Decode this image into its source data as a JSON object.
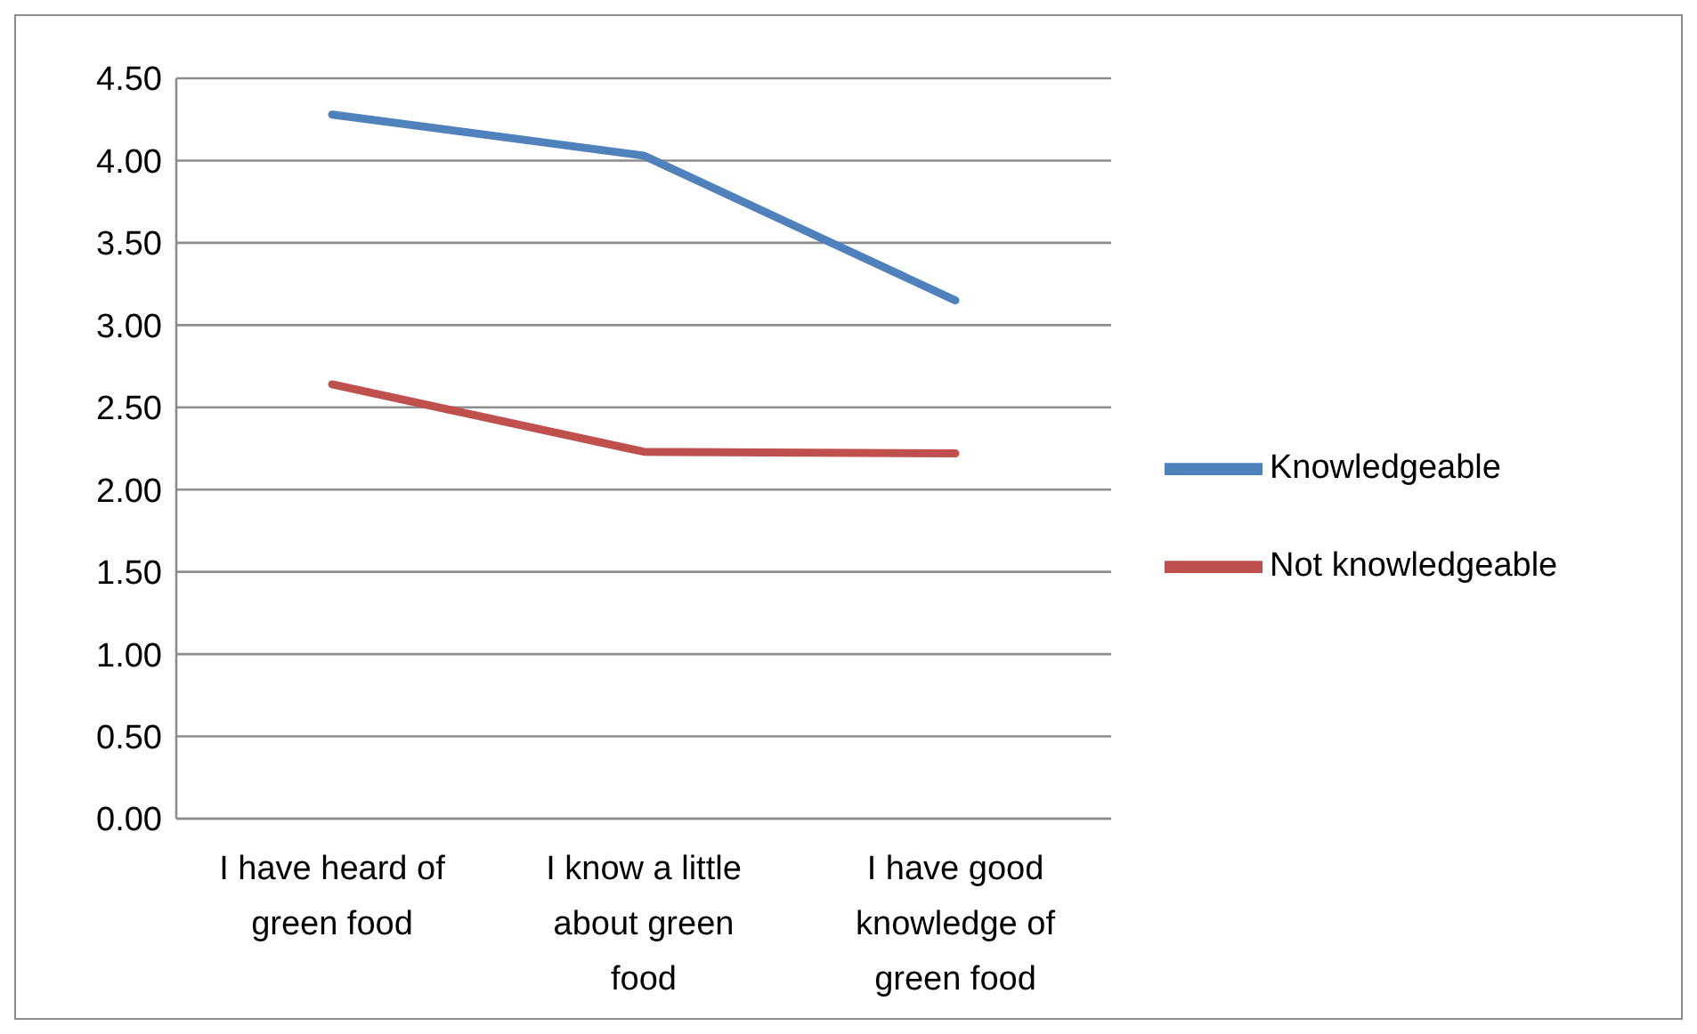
{
  "chart_data": {
    "type": "line",
    "categories": [
      "I have heard of green food",
      "I know a little about green food",
      "I have good knowledge of green food"
    ],
    "series": [
      {
        "name": "Knowledgeable",
        "color": "#4f81bd",
        "values": [
          4.28,
          4.03,
          3.15
        ]
      },
      {
        "name": "Not knowledgeable",
        "color": "#c0504d",
        "values": [
          2.64,
          2.23,
          2.22
        ]
      }
    ],
    "ylim": [
      0,
      4.5
    ],
    "yticks": [
      {
        "value": 0,
        "label": "0.00"
      },
      {
        "value": 0.5,
        "label": "0.50"
      },
      {
        "value": 1,
        "label": "1.00"
      },
      {
        "value": 1.5,
        "label": "1.50"
      },
      {
        "value": 2,
        "label": "2.00"
      },
      {
        "value": 2.5,
        "label": "2.50"
      },
      {
        "value": 3,
        "label": "3.00"
      },
      {
        "value": 3.5,
        "label": "3.50"
      },
      {
        "value": 4,
        "label": "4.00"
      },
      {
        "value": 4.5,
        "label": "4.50"
      }
    ],
    "grid": "y",
    "legend": "right",
    "marker": "none",
    "line_style": "solid"
  }
}
